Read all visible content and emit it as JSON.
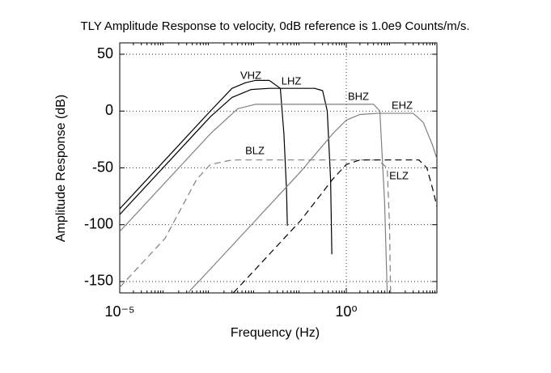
{
  "chart_data": {
    "type": "line",
    "title": "TLY Amplitude Response to velocity, 0dB reference is 1.0e9 Counts/m/s.",
    "xlabel": "Frequency (Hz)",
    "ylabel": "Amplitude Response (dB)",
    "xscale": "log",
    "grid": true,
    "xlim": [
      1e-05,
      100
    ],
    "xticks": [
      {
        "value": 1e-05,
        "label": "10⁻⁵"
      },
      {
        "value": 1,
        "label": "10⁰"
      }
    ],
    "ylim": [
      -160,
      60
    ],
    "yticks": [
      50,
      0,
      -50,
      -100,
      -150
    ],
    "series": [
      {
        "name": "VHZ",
        "color": "#000000",
        "line_style": "solid",
        "x": [
          1e-05,
          0.0001,
          0.001,
          0.003,
          0.006,
          0.01,
          0.02,
          0.035,
          0.042,
          0.048,
          0.05
        ],
        "values": [
          -86,
          -43,
          0,
          20,
          25,
          27,
          27,
          20,
          -20,
          -70,
          -101
        ]
      },
      {
        "name": "LHZ",
        "color": "#000000",
        "line_style": "solid",
        "x": [
          1e-05,
          0.0001,
          0.001,
          0.003,
          0.008,
          0.02,
          0.2,
          0.3,
          0.38,
          0.45,
          0.48
        ],
        "values": [
          -91,
          -48,
          -5,
          12,
          19,
          20,
          20,
          18,
          0,
          -60,
          -126
        ]
      },
      {
        "name": "BHZ",
        "color": "#808080",
        "line_style": "solid",
        "x": [
          1e-05,
          0.0001,
          0.001,
          0.004,
          0.01,
          0.1,
          1,
          4,
          5.5,
          7,
          8
        ],
        "values": [
          -106,
          -63,
          -20,
          2,
          6,
          6,
          6,
          6,
          0,
          -80,
          -160
        ]
      },
      {
        "name": "EHZ",
        "color": "#808080",
        "line_style": "solid",
        "x": [
          0.00032,
          0.001,
          0.01,
          0.1,
          0.5,
          1,
          2,
          5,
          30,
          50,
          80,
          100
        ],
        "values": [
          -160,
          -139,
          -96,
          -53,
          -20,
          -8,
          -3,
          -2,
          -2,
          -10,
          -30,
          -42
        ]
      },
      {
        "name": "BLZ",
        "color": "#808080",
        "line_style": "dashed",
        "x": [
          1e-05,
          0.0001,
          0.0005,
          0.001,
          0.003,
          0.1,
          5,
          8,
          9,
          9.5
        ],
        "values": [
          -155,
          -112,
          -60,
          -47,
          -43,
          -43,
          -43,
          -50,
          -100,
          -160
        ]
      },
      {
        "name": "ELZ",
        "color": "#000000",
        "line_style": "dashed",
        "x": [
          0.0032,
          0.01,
          0.1,
          0.5,
          1,
          2,
          40,
          60,
          80,
          100
        ],
        "values": [
          -160,
          -139,
          -96,
          -60,
          -47,
          -43,
          -43,
          -50,
          -68,
          -84
        ]
      }
    ]
  }
}
